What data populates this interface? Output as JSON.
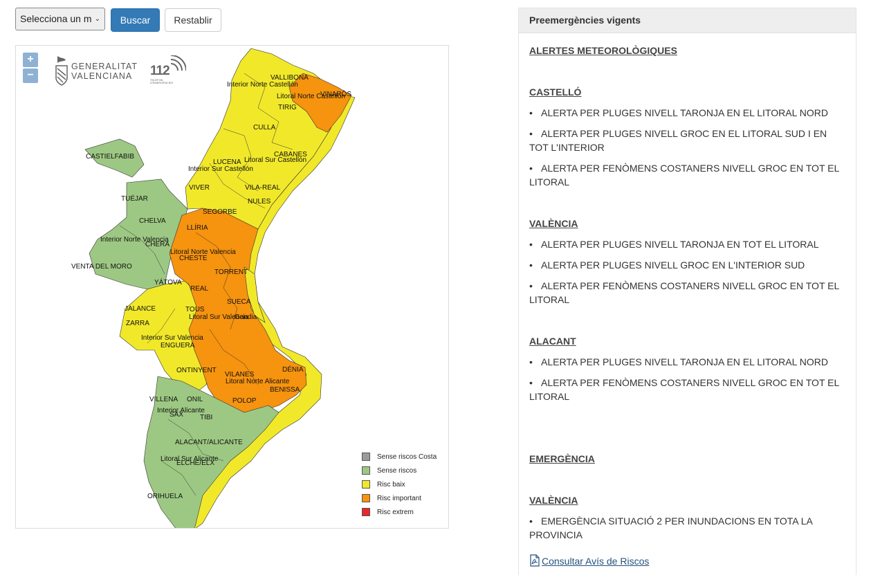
{
  "toolbar": {
    "select_value": "Selecciona un m",
    "search_label": "Buscar",
    "reset_label": "Restablir"
  },
  "map": {
    "zoom_in": "+",
    "zoom_out": "−",
    "logo_gv_line1": "GENERALITAT",
    "logo_gv_line2": "VALENCIANA",
    "logo_112": "112",
    "logo_112_sub": "TELÈFON D'EMERGÈNCIES",
    "labels": {
      "vallibona": "VALLIBONA",
      "interior_norte_castellon": "Interior Norte Castellón",
      "litoral_norte_castellon": "Litoral Norte Castellón",
      "vinaros": "VINARÒS",
      "tirig": "TIRIG",
      "culla": "CULLA",
      "cabanes": "CABANES",
      "castielfabib": "CASTIELFABIB",
      "lucena": "LUCENA",
      "litoral_sur_castellon": "Litoral Sur Castellón",
      "interior_sur_castellon": "Interior Sur Castellón",
      "viver": "VIVER",
      "vila_real": "VILA-REAL",
      "nules": "NULES",
      "tuejar": "TUÉJAR",
      "segorbe": "SEGORBE",
      "chelva": "CHELVA",
      "lliria": "LLÍRIA",
      "interior_norte_valencia": "Interior Norte Valencia",
      "chera": "CHERA",
      "litoral_norte_valencia": "Litoral Norte Valencia",
      "cheste": "CHESTE",
      "venta_del_moro": "VENTA DEL MORO",
      "torrent": "TORRENT",
      "yatova": "YÁTOVA",
      "real": "REAL",
      "jalance": "JALANCE",
      "sueca": "SUECA",
      "tous": "TOUS",
      "litoral_sur_valencia": "Litoral Sur Valencia",
      "gandia": "Gandia",
      "zarra": "ZARRA",
      "interior_sur_valencia": "Interior Sur Valencia",
      "enguera": "ENGUERA",
      "denia": "DÉNIA",
      "ontinyent": "ONTINYENT",
      "vilanes": "VILANES",
      "litoral_norte_alicante": "Litoral Norte Alicante",
      "benissa": "BENISSA",
      "villena": "VILLENA",
      "onil": "ONIL",
      "polop": "POLOP",
      "interior_alicante": "Interior Alicante",
      "sax": "SAX",
      "tibi": "TIBI",
      "alacant": "ALACANT/ALICANTE",
      "litoral_sur_alicante": "Litoral Sur Alicante",
      "elche": "ELCHE/ELX",
      "orihuela": "ORIHUELA"
    },
    "legend": [
      {
        "label": "Sense riscos Costa",
        "color": "#9b9b9b"
      },
      {
        "label": "Sense riscos",
        "color": "#9dc883"
      },
      {
        "label": "Risc baix",
        "color": "#f1e82a"
      },
      {
        "label": "Risc important",
        "color": "#f6930f"
      },
      {
        "label": "Risc extrem",
        "color": "#e8282a"
      }
    ]
  },
  "panel": {
    "title": "Preemergències vigents",
    "alerts_heading": "ALERTES METEOROLÒGIQUES",
    "castello": {
      "heading": "CASTELLÓ",
      "items": [
        "ALERTA PER PLUGES NIVELL TARONJA EN EL LITORAL NORD",
        "ALERTA PER PLUGES NIVELL GROC EN EL LITORAL SUD I EN TOT L'INTERIOR",
        "ALERTA PER FENÒMENS COSTANERS NIVELL GROC EN TOT EL LITORAL"
      ]
    },
    "valencia": {
      "heading": "VALÈNCIA",
      "items": [
        "ALERTA PER PLUGES NIVELL TARONJA EN TOT EL LITORAL",
        "ALERTA PER PLUGES NIVELL GROC EN L'INTERIOR SUD",
        "ALERTA PER FENÒMENS COSTANERS NIVELL GROC EN TOT EL LITORAL"
      ]
    },
    "alacant": {
      "heading": "ALACANT",
      "items": [
        "ALERTA PER PLUGES NIVELL TARONJA EN EL LITORAL NORD",
        "ALERTA PER FENÒMENS COSTANERS NIVELL GROC EN TOT EL LITORAL"
      ]
    },
    "emergency_heading": "EMERGÈNCIA",
    "emergency_valencia": {
      "heading": "VALÈNCIA",
      "items": [
        "EMERGÈNCIA SITUACIÓ 2 PER INUNDACIONS EN TOTA LA PROVINCIA"
      ]
    },
    "pdf_link": "Consultar Avís de Riscos"
  }
}
